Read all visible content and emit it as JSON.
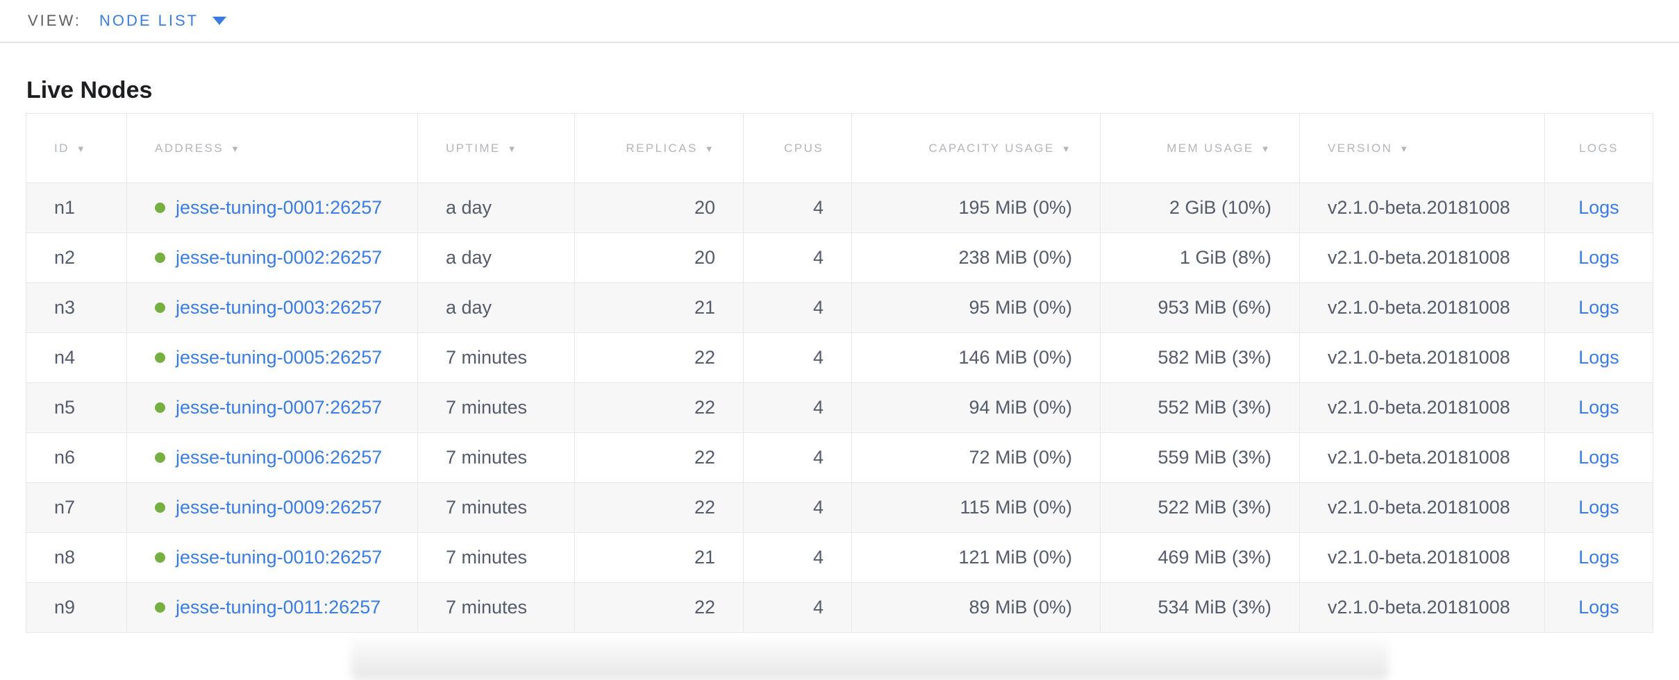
{
  "view_bar": {
    "label": "VIEW:",
    "selected": "NODE LIST"
  },
  "page": {
    "title": "Live Nodes"
  },
  "table": {
    "sort_indicator": "▼",
    "columns": [
      {
        "key": "id",
        "label": "ID",
        "sortable": true
      },
      {
        "key": "address",
        "label": "ADDRESS",
        "sortable": true
      },
      {
        "key": "uptime",
        "label": "UPTIME",
        "sortable": true
      },
      {
        "key": "replicas",
        "label": "REPLICAS",
        "sortable": true
      },
      {
        "key": "cpus",
        "label": "CPUS",
        "sortable": false
      },
      {
        "key": "capacity",
        "label": "CAPACITY USAGE",
        "sortable": true
      },
      {
        "key": "mem",
        "label": "MEM USAGE",
        "sortable": true
      },
      {
        "key": "version",
        "label": "VERSION",
        "sortable": true
      },
      {
        "key": "logs",
        "label": "LOGS",
        "sortable": false
      }
    ],
    "rows": [
      {
        "id": "n1",
        "address": "jesse-tuning-0001:26257",
        "status": "healthy",
        "uptime": "a day",
        "replicas": "20",
        "cpus": "4",
        "capacity": "195 MiB (0%)",
        "mem": "2 GiB (10%)",
        "version": "v2.1.0-beta.20181008",
        "logs": "Logs"
      },
      {
        "id": "n2",
        "address": "jesse-tuning-0002:26257",
        "status": "healthy",
        "uptime": "a day",
        "replicas": "20",
        "cpus": "4",
        "capacity": "238 MiB (0%)",
        "mem": "1 GiB (8%)",
        "version": "v2.1.0-beta.20181008",
        "logs": "Logs"
      },
      {
        "id": "n3",
        "address": "jesse-tuning-0003:26257",
        "status": "healthy",
        "uptime": "a day",
        "replicas": "21",
        "cpus": "4",
        "capacity": "95 MiB (0%)",
        "mem": "953 MiB (6%)",
        "version": "v2.1.0-beta.20181008",
        "logs": "Logs"
      },
      {
        "id": "n4",
        "address": "jesse-tuning-0005:26257",
        "status": "healthy",
        "uptime": "7 minutes",
        "replicas": "22",
        "cpus": "4",
        "capacity": "146 MiB (0%)",
        "mem": "582 MiB (3%)",
        "version": "v2.1.0-beta.20181008",
        "logs": "Logs"
      },
      {
        "id": "n5",
        "address": "jesse-tuning-0007:26257",
        "status": "healthy",
        "uptime": "7 minutes",
        "replicas": "22",
        "cpus": "4",
        "capacity": "94 MiB (0%)",
        "mem": "552 MiB (3%)",
        "version": "v2.1.0-beta.20181008",
        "logs": "Logs"
      },
      {
        "id": "n6",
        "address": "jesse-tuning-0006:26257",
        "status": "healthy",
        "uptime": "7 minutes",
        "replicas": "22",
        "cpus": "4",
        "capacity": "72 MiB (0%)",
        "mem": "559 MiB (3%)",
        "version": "v2.1.0-beta.20181008",
        "logs": "Logs"
      },
      {
        "id": "n7",
        "address": "jesse-tuning-0009:26257",
        "status": "healthy",
        "uptime": "7 minutes",
        "replicas": "22",
        "cpus": "4",
        "capacity": "115 MiB (0%)",
        "mem": "522 MiB (3%)",
        "version": "v2.1.0-beta.20181008",
        "logs": "Logs"
      },
      {
        "id": "n8",
        "address": "jesse-tuning-0010:26257",
        "status": "healthy",
        "uptime": "7 minutes",
        "replicas": "21",
        "cpus": "4",
        "capacity": "121 MiB (0%)",
        "mem": "469 MiB (3%)",
        "version": "v2.1.0-beta.20181008",
        "logs": "Logs"
      },
      {
        "id": "n9",
        "address": "jesse-tuning-0011:26257",
        "status": "healthy",
        "uptime": "7 minutes",
        "replicas": "22",
        "cpus": "4",
        "capacity": "89 MiB (0%)",
        "mem": "534 MiB (3%)",
        "version": "v2.1.0-beta.20181008",
        "logs": "Logs"
      }
    ]
  },
  "colors": {
    "link": "#3a7ce2",
    "healthy_dot": "#76b041",
    "header_text": "#b2b6bc",
    "cell_text": "#545b6b"
  }
}
